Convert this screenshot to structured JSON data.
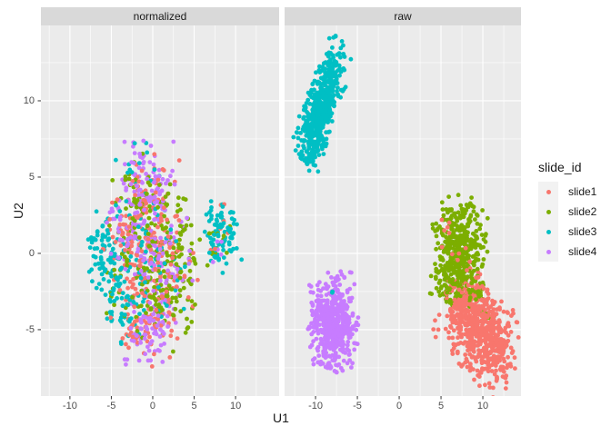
{
  "chart_data": {
    "type": "scatter",
    "title": "",
    "xlabel": "U1",
    "ylabel": "U2",
    "facet_variable_values": [
      "normalized",
      "raw"
    ],
    "legend": {
      "title": "slide_id",
      "position": "right",
      "entries": [
        {
          "label": "slide1",
          "color": "#F8766D"
        },
        {
          "label": "slide2",
          "color": "#7CAE00"
        },
        {
          "label": "slide3",
          "color": "#00BFC4"
        },
        {
          "label": "slide4",
          "color": "#C77CFF"
        }
      ]
    },
    "axes": {
      "x_ticks": [
        -10,
        -5,
        0,
        5,
        10
      ],
      "x_minor": [
        -12.5,
        -7.5,
        -2.5,
        2.5,
        7.5,
        12.5
      ],
      "y_ticks": [
        -5,
        0,
        5,
        10
      ],
      "y_minor": [
        -7.5,
        -2.5,
        2.5,
        7.5,
        12.5
      ],
      "ydomain": [
        -9.35,
        14.94
      ],
      "grid": "on"
    },
    "style": {
      "panel_bg": "#EBEBEB",
      "strip_bg": "#D9D9D9",
      "grid_color": "#FFFFFF",
      "tick_color": "#333333",
      "tick_label_color": "#4D4D4D",
      "text_color": "#1A1A1A",
      "point_radius": 2.4
    },
    "facets": [
      {
        "title": "normalized",
        "xdomain": [
          -13.5,
          15.26
        ],
        "clusters": [
          {
            "slide": "slide1",
            "cx": -0.8,
            "cy": 2.8,
            "sx": 2.0,
            "sy": 1.8,
            "rot": 0,
            "n": 80
          },
          {
            "slide": "slide1",
            "cx": 0.2,
            "cy": -0.8,
            "sx": 2.4,
            "sy": 1.9,
            "rot": 0,
            "n": 110
          },
          {
            "slide": "slide1",
            "cx": -0.6,
            "cy": -4.6,
            "sx": 1.6,
            "sy": 1.3,
            "rot": 0,
            "n": 60
          },
          {
            "slide": "slide1",
            "cx": -3.8,
            "cy": 0.5,
            "sx": 1.3,
            "sy": 1.8,
            "rot": 0,
            "n": 25
          },
          {
            "slide": "slide1",
            "cx": 8.1,
            "cy": 1.4,
            "sx": 0.8,
            "sy": 0.8,
            "rot": 0,
            "n": 7
          },
          {
            "slide": "slide2",
            "cx": 1.0,
            "cy": -0.6,
            "sx": 2.2,
            "sy": 2.0,
            "rot": 0,
            "n": 110
          },
          {
            "slide": "slide2",
            "cx": 1.8,
            "cy": -3.6,
            "sx": 1.7,
            "sy": 1.3,
            "rot": 0,
            "n": 55
          },
          {
            "slide": "slide2",
            "cx": -1.6,
            "cy": 3.2,
            "sx": 1.8,
            "sy": 1.5,
            "rot": 0,
            "n": 50
          },
          {
            "slide": "slide2",
            "cx": -4.2,
            "cy": -1.8,
            "sx": 1.1,
            "sy": 1.6,
            "rot": 0,
            "n": 22
          },
          {
            "slide": "slide2",
            "cx": 7.9,
            "cy": 0.5,
            "sx": 1.0,
            "sy": 1.1,
            "rot": 0,
            "n": 14
          },
          {
            "slide": "slide2",
            "cx": 3.6,
            "cy": 0.8,
            "sx": 1.1,
            "sy": 1.3,
            "rot": 0,
            "n": 22
          },
          {
            "slide": "slide3",
            "cx": -4.9,
            "cy": -1.5,
            "sx": 1.1,
            "sy": 2.0,
            "rot": 10,
            "n": 75
          },
          {
            "slide": "slide3",
            "cx": -2.6,
            "cy": -3.7,
            "sx": 1.4,
            "sy": 1.1,
            "rot": 0,
            "n": 35
          },
          {
            "slide": "slide3",
            "cx": -0.8,
            "cy": 1.2,
            "sx": 2.2,
            "sy": 2.0,
            "rot": 0,
            "n": 45
          },
          {
            "slide": "slide3",
            "cx": -6.2,
            "cy": 0.3,
            "sx": 1.0,
            "sy": 1.3,
            "rot": 0,
            "n": 30
          },
          {
            "slide": "slide3",
            "cx": 8.4,
            "cy": 1.2,
            "sx": 0.95,
            "sy": 1.25,
            "rot": 20,
            "n": 85
          },
          {
            "slide": "slide3",
            "cx": -1.8,
            "cy": 5.6,
            "sx": 1.4,
            "sy": 0.9,
            "rot": 0,
            "n": 12
          },
          {
            "slide": "slide3",
            "cx": 1.8,
            "cy": -1.8,
            "sx": 1.4,
            "sy": 1.2,
            "rot": 0,
            "n": 15
          },
          {
            "slide": "slide4",
            "cx": -0.8,
            "cy": 4.7,
            "sx": 1.5,
            "sy": 1.3,
            "rot": 0,
            "n": 85
          },
          {
            "slide": "slide4",
            "cx": -0.4,
            "cy": 0.6,
            "sx": 2.2,
            "sy": 2.1,
            "rot": 0,
            "n": 100
          },
          {
            "slide": "slide4",
            "cx": -0.5,
            "cy": -5.1,
            "sx": 1.5,
            "sy": 1.2,
            "rot": 0,
            "n": 75
          },
          {
            "slide": "slide4",
            "cx": -3.4,
            "cy": 2.2,
            "sx": 1.3,
            "sy": 1.3,
            "rot": 0,
            "n": 25
          },
          {
            "slide": "slide4",
            "cx": 2.4,
            "cy": -2.2,
            "sx": 1.4,
            "sy": 1.3,
            "rot": 0,
            "n": 18
          },
          {
            "slide": "slide4",
            "cx": 8.2,
            "cy": 0.4,
            "sx": 0.7,
            "sy": 0.8,
            "rot": 0,
            "n": 5
          }
        ]
      },
      {
        "title": "raw",
        "xdomain": [
          -13.7,
          14.56
        ],
        "clusters": [
          {
            "slide": "slide3",
            "cx": -9.2,
            "cy": 9.9,
            "sx": 2.05,
            "sy": 0.8,
            "rot": 57,
            "n": 500
          },
          {
            "slide": "slide3",
            "cx": -10.0,
            "cy": 6.7,
            "sx": 0.85,
            "sy": 0.55,
            "rot": 45,
            "n": 55
          },
          {
            "slide": "slide4",
            "cx": -7.9,
            "cy": -4.6,
            "sx": 1.35,
            "sy": 1.5,
            "rot": 0,
            "n": 520
          },
          {
            "slide": "slide3",
            "cx": -7.9,
            "cy": -2.5,
            "sx": 0.1,
            "sy": 0.1,
            "rot": 0,
            "n": 2,
            "top": true
          },
          {
            "slide": "slide2",
            "cx": 7.1,
            "cy": 0.2,
            "sx": 1.5,
            "sy": 1.65,
            "rot": -10,
            "n": 450
          },
          {
            "slide": "slide2",
            "cx": 6.2,
            "cy": -2.0,
            "sx": 0.8,
            "sy": 0.7,
            "rot": 0,
            "n": 40
          },
          {
            "slide": "slide1",
            "cx": 5.3,
            "cy": 1.2,
            "sx": 0.45,
            "sy": 0.8,
            "rot": 0,
            "n": 6,
            "top": true
          },
          {
            "slide": "slide1",
            "cx": 7.4,
            "cy": -0.3,
            "sx": 0.6,
            "sy": 0.6,
            "rot": 0,
            "n": 5,
            "top": true
          },
          {
            "slide": "slide1",
            "cx": 9.7,
            "cy": -5.0,
            "sx": 2.15,
            "sy": 1.45,
            "rot": -33,
            "n": 560
          },
          {
            "slide": "slide1",
            "cx": 7.1,
            "cy": -3.3,
            "sx": 0.8,
            "sy": 0.8,
            "rot": 0,
            "n": 55
          },
          {
            "slide": "slide2",
            "cx": 8.6,
            "cy": -2.6,
            "sx": 1.2,
            "sy": 0.55,
            "rot": -25,
            "n": 35
          },
          {
            "slide": "slide1",
            "cx": 12.0,
            "cy": -6.7,
            "sx": 0.8,
            "sy": 0.65,
            "rot": -20,
            "n": 35
          }
        ]
      }
    ]
  }
}
